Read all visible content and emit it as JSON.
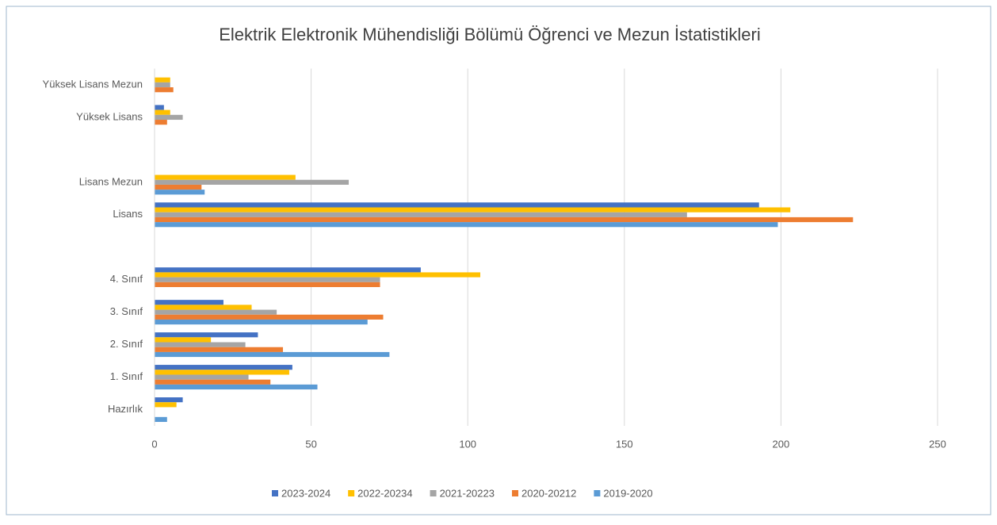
{
  "chart_data": {
    "type": "barh",
    "title": "Elektrik Elektronik Mühendisliği Bölümü Öğrenci ve Mezun İstatistikleri",
    "categories": [
      "Yüksek Lisans Mezun",
      "Yüksek Lisans",
      null,
      "Lisans Mezun",
      "Lisans",
      null,
      "4. Sınıf",
      "3. Sınıf",
      "2. Sınıf",
      "1. Sınıf",
      "Hazırlık"
    ],
    "series": [
      {
        "name": "2023-2024",
        "color": "#4472c4",
        "values": [
          0,
          3,
          null,
          0,
          193,
          null,
          85,
          22,
          33,
          44,
          9
        ]
      },
      {
        "name": "2022-20234",
        "color": "#ffc000",
        "values": [
          5,
          5,
          null,
          45,
          203,
          null,
          104,
          31,
          18,
          43,
          7
        ]
      },
      {
        "name": "2021-20223",
        "color": "#a5a5a5",
        "values": [
          5,
          9,
          null,
          62,
          170,
          null,
          72,
          39,
          29,
          30,
          0
        ]
      },
      {
        "name": "2020-20212",
        "color": "#ed7d31",
        "values": [
          6,
          4,
          null,
          15,
          223,
          null,
          72,
          73,
          41,
          37,
          0
        ]
      },
      {
        "name": "2019-2020",
        "color": "#5b9bd5",
        "values": [
          0,
          0,
          null,
          16,
          199,
          null,
          0,
          68,
          75,
          52,
          4
        ]
      }
    ],
    "xlim": [
      0,
      250
    ],
    "xticks": [
      0,
      50,
      100,
      150,
      200,
      250
    ],
    "grid": true,
    "legend": "bottom"
  }
}
